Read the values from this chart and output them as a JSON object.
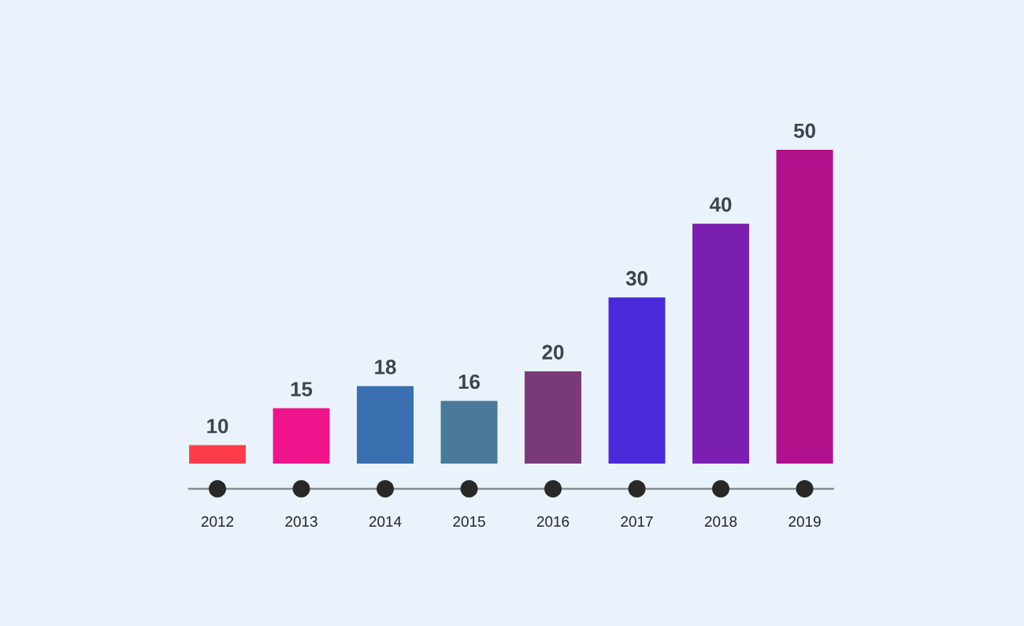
{
  "chart_data": {
    "type": "bar",
    "categories": [
      "2012",
      "2013",
      "2014",
      "2015",
      "2016",
      "2017",
      "2018",
      "2019"
    ],
    "values": [
      10,
      15,
      18,
      16,
      20,
      30,
      40,
      50
    ],
    "colors": [
      "#ff3d4a",
      "#f0148c",
      "#3a6fb0",
      "#4a7a9a",
      "#7a3a7a",
      "#4a2ad8",
      "#7a1fb0",
      "#b0108a"
    ],
    "ylim": [
      7.5,
      50
    ],
    "data_labels": true
  }
}
